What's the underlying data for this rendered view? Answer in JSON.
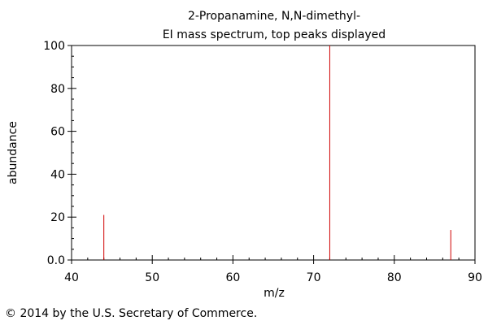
{
  "chart_data": {
    "type": "bar",
    "title": "2-Propanamine, N,N-dimethyl-",
    "subtitle": "EI mass spectrum, top peaks displayed",
    "xlabel": "m/z",
    "ylabel": "abundance",
    "xlim": [
      40,
      90
    ],
    "ylim": [
      0,
      100
    ],
    "x_ticks": [
      40,
      50,
      60,
      70,
      80,
      90
    ],
    "y_ticks": [
      "0.0",
      "20",
      "40",
      "60",
      "80",
      "100"
    ],
    "y_tick_values": [
      0,
      20,
      40,
      60,
      80,
      100
    ],
    "grid": false,
    "peak_color": "#d00000",
    "peaks": [
      {
        "mz": 44,
        "abundance": 21
      },
      {
        "mz": 72,
        "abundance": 100
      },
      {
        "mz": 87,
        "abundance": 14
      }
    ]
  },
  "footer": {
    "copyright": "© 2014 by the U.S. Secretary of Commerce."
  }
}
